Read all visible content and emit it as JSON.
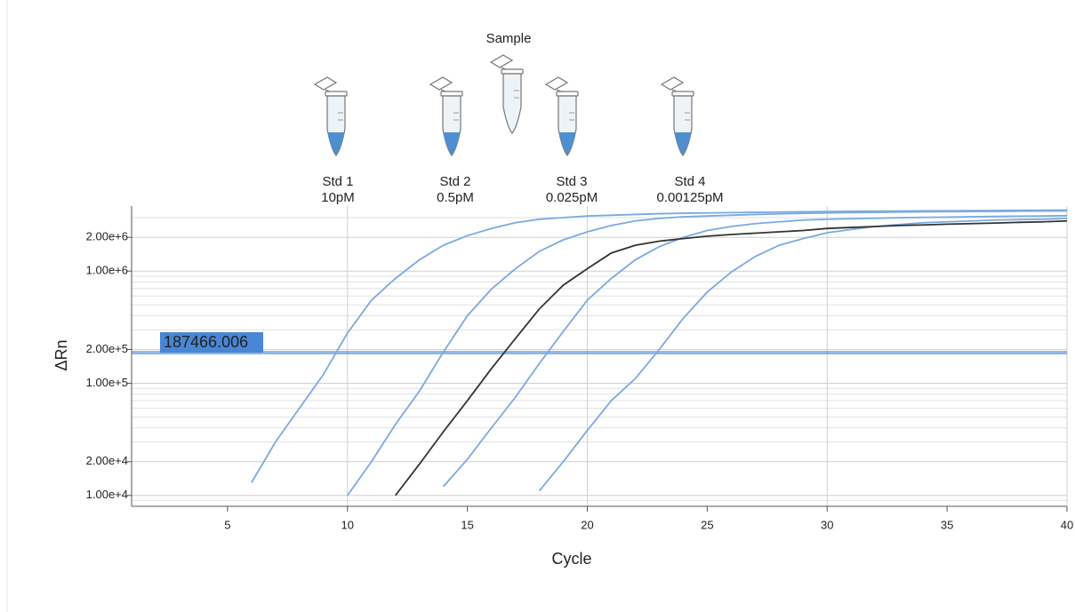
{
  "chart_data": {
    "type": "line",
    "x_label": "Cycle",
    "y_label": "ΔRn",
    "log_y": true,
    "xlim": [
      1,
      40
    ],
    "ylim": [
      8000,
      3800000
    ],
    "xticks": [
      5,
      10,
      15,
      20,
      25,
      30,
      35,
      40
    ],
    "xgrid": [
      10,
      20,
      30,
      40
    ],
    "yticks": [
      {
        "value": 10000,
        "label": "1.00e+4"
      },
      {
        "value": 20000,
        "label": "2.00e+4"
      },
      {
        "value": 100000,
        "label": "1.00e+5"
      },
      {
        "value": 200000,
        "label": "2.00e+5"
      },
      {
        "value": 1000000,
        "label": "1.00e+6"
      },
      {
        "value": 2000000,
        "label": "2.00e+6"
      }
    ],
    "yminor": [
      9000,
      30000,
      40000,
      50000,
      60000,
      70000,
      80000,
      90000,
      300000,
      400000,
      500000,
      600000,
      700000,
      800000,
      900000,
      3000000
    ],
    "threshold": 187466.006,
    "threshold_color": "#4a86d6",
    "x": [
      1,
      2,
      3,
      4,
      5,
      6,
      7,
      8,
      9,
      10,
      11,
      12,
      13,
      14,
      15,
      16,
      17,
      18,
      19,
      20,
      21,
      22,
      23,
      24,
      25,
      26,
      27,
      28,
      29,
      30,
      31,
      32,
      33,
      34,
      35,
      36,
      37,
      38,
      39,
      40
    ],
    "series": [
      {
        "name": "Std 1",
        "concentration": "10pM",
        "color": "#7aaae0",
        "values": [
          null,
          null,
          null,
          null,
          null,
          13000,
          30000,
          60000,
          120000,
          280000,
          550000,
          860000,
          1260000,
          1700000,
          2070000,
          2400000,
          2700000,
          2900000,
          3000000,
          3100000,
          3150000,
          3200000,
          3250000,
          3280000,
          3300000,
          3320000,
          3340000,
          3360000,
          3380000,
          3400000,
          3410000,
          3420000,
          3430000,
          3440000,
          3450000,
          3460000,
          3470000,
          3480000,
          3490000,
          3500000
        ]
      },
      {
        "name": "Std 2",
        "concentration": "0.5pM",
        "color": "#7aaae0",
        "values": [
          null,
          null,
          null,
          null,
          null,
          null,
          null,
          null,
          null,
          10000,
          20000,
          43000,
          85000,
          190000,
          400000,
          690000,
          1050000,
          1500000,
          1900000,
          2240000,
          2550000,
          2800000,
          2950000,
          3050000,
          3100000,
          3150000,
          3200000,
          3240000,
          3270000,
          3300000,
          3320000,
          3340000,
          3360000,
          3380000,
          3390000,
          3400000,
          3410000,
          3420000,
          3430000,
          3440000
        ]
      },
      {
        "name": "Std 3",
        "concentration": "0.025pM",
        "color": "#7aaae0",
        "values": [
          null,
          null,
          null,
          null,
          null,
          null,
          null,
          null,
          null,
          null,
          null,
          null,
          null,
          12000,
          21000,
          40000,
          75000,
          150000,
          290000,
          550000,
          860000,
          1260000,
          1650000,
          2000000,
          2300000,
          2500000,
          2650000,
          2750000,
          2850000,
          2900000,
          2930000,
          2960000,
          2990000,
          3010000,
          3030000,
          3050000,
          3070000,
          3090000,
          3100000,
          3120000
        ]
      },
      {
        "name": "Std 4",
        "concentration": "0.00125pM",
        "color": "#7aaae0",
        "values": [
          null,
          null,
          null,
          null,
          null,
          null,
          null,
          null,
          null,
          null,
          null,
          null,
          null,
          null,
          null,
          null,
          null,
          11000,
          20000,
          38000,
          70000,
          110000,
          200000,
          380000,
          650000,
          980000,
          1350000,
          1700000,
          1950000,
          2200000,
          2350000,
          2500000,
          2600000,
          2700000,
          2750000,
          2800000,
          2850000,
          2880000,
          2900000,
          2950000
        ]
      },
      {
        "name": "Sample",
        "color": "#333333",
        "values": [
          null,
          null,
          null,
          null,
          null,
          null,
          null,
          null,
          null,
          null,
          null,
          10000,
          19000,
          37000,
          70000,
          135000,
          250000,
          460000,
          750000,
          1050000,
          1450000,
          1700000,
          1850000,
          1950000,
          2050000,
          2120000,
          2180000,
          2240000,
          2300000,
          2400000,
          2450000,
          2500000,
          2550000,
          2580000,
          2620000,
          2650000,
          2680000,
          2720000,
          2750000,
          2800000
        ]
      }
    ]
  }
}
